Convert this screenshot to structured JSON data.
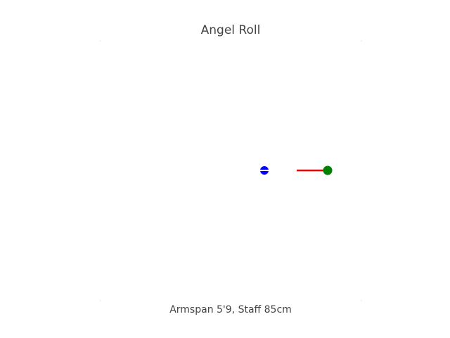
{
  "diagram": {
    "title": "Angel Roll",
    "caption": "Armspan 5'9, Staff 85cm",
    "colors": {
      "staff": "#ff0000",
      "hand_marker": "#0000ff",
      "staff_end": "#008000",
      "text": "#444444"
    }
  }
}
